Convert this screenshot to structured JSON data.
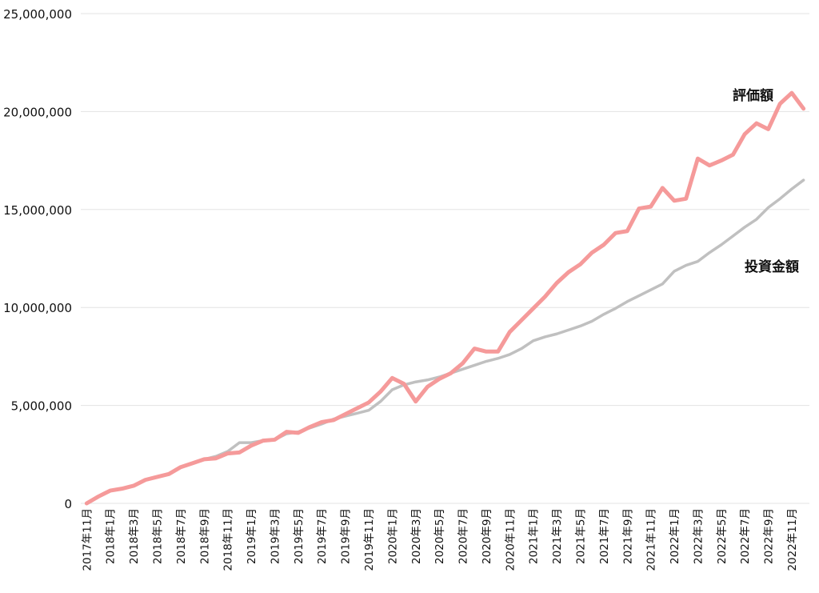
{
  "chart_data": {
    "type": "line",
    "ylim": [
      0,
      25000000
    ],
    "y_ticks": [
      "0",
      "5,000,000",
      "10,000,000",
      "15,000,000",
      "20,000,000",
      "25,000,000"
    ],
    "y_tick_values": [
      0,
      5000000,
      10000000,
      15000000,
      20000000,
      25000000
    ],
    "grid": true,
    "x": [
      "2017年11月",
      "2017年12月",
      "2018年1月",
      "2018年2月",
      "2018年3月",
      "2018年4月",
      "2018年5月",
      "2018年6月",
      "2018年7月",
      "2018年8月",
      "2018年9月",
      "2018年10月",
      "2018年11月",
      "2018年12月",
      "2019年1月",
      "2019年2月",
      "2019年3月",
      "2019年4月",
      "2019年5月",
      "2019年6月",
      "2019年7月",
      "2019年8月",
      "2019年9月",
      "2019年10月",
      "2019年11月",
      "2019年12月",
      "2020年1月",
      "2020年2月",
      "2020年3月",
      "2020年4月",
      "2020年5月",
      "2020年6月",
      "2020年7月",
      "2020年8月",
      "2020年9月",
      "2020年10月",
      "2020年11月",
      "2020年12月",
      "2021年1月",
      "2021年2月",
      "2021年3月",
      "2021年4月",
      "2021年5月",
      "2021年6月",
      "2021年7月",
      "2021年8月",
      "2021年9月",
      "2021年10月",
      "2021年11月",
      "2021年12月",
      "2022年1月",
      "2022年2月",
      "2022年3月",
      "2022年4月",
      "2022年5月",
      "2022年6月",
      "2022年7月",
      "2022年8月",
      "2022年9月",
      "2022年10月",
      "2022年11月",
      "2022年12月"
    ],
    "x_tick_labels": [
      "2017年11月",
      "2018年1月",
      "2018年3月",
      "2018年5月",
      "2018年7月",
      "2018年9月",
      "2018年11月",
      "2019年1月",
      "2019年3月",
      "2019年5月",
      "2019年7月",
      "2019年9月",
      "2019年11月",
      "2020年1月",
      "2020年3月",
      "2020年5月",
      "2020年7月",
      "2020年9月",
      "2020年11月",
      "2021年1月",
      "2021年3月",
      "2021年5月",
      "2021年7月",
      "2021年9月",
      "2021年11月",
      "2022年1月",
      "2022年3月",
      "2022年5月",
      "2022年7月",
      "2022年9月",
      "2022年11月"
    ],
    "series": [
      {
        "name": "評価額",
        "color": "#f59a9a",
        "values": [
          0,
          350000,
          650000,
          750000,
          900000,
          1200000,
          1350000,
          1500000,
          1850000,
          2050000,
          2250000,
          2300000,
          2550000,
          2600000,
          2950000,
          3200000,
          3250000,
          3650000,
          3600000,
          3900000,
          4150000,
          4250000,
          4550000,
          4850000,
          5150000,
          5700000,
          6400000,
          6100000,
          5200000,
          5950000,
          6350000,
          6650000,
          7150000,
          7900000,
          7750000,
          7750000,
          8750000,
          9350000,
          9950000,
          10550000,
          11250000,
          11800000,
          12200000,
          12800000,
          13200000,
          13800000,
          13900000,
          15050000,
          15150000,
          16100000,
          15450000,
          15550000,
          17600000,
          17250000,
          17500000,
          17800000,
          18850000,
          19400000,
          19100000,
          20400000,
          20950000,
          20150000
        ]
      },
      {
        "name": "投資金額",
        "color": "#c0c0c0",
        "values": [
          0,
          350000,
          650000,
          750000,
          900000,
          1200000,
          1350000,
          1500000,
          1850000,
          2050000,
          2250000,
          2400000,
          2650000,
          3100000,
          3100000,
          3200000,
          3250000,
          3550000,
          3650000,
          3850000,
          4050000,
          4300000,
          4450000,
          4600000,
          4750000,
          5200000,
          5800000,
          6050000,
          6200000,
          6300000,
          6450000,
          6650000,
          6850000,
          7050000,
          7250000,
          7400000,
          7600000,
          7900000,
          8300000,
          8500000,
          8650000,
          8850000,
          9050000,
          9300000,
          9650000,
          9950000,
          10300000,
          10600000,
          10900000,
          11200000,
          11850000,
          12150000,
          12350000,
          12800000,
          13200000,
          13650000,
          14100000,
          14500000,
          15100000,
          15550000,
          16050000,
          16500000
        ]
      }
    ]
  }
}
